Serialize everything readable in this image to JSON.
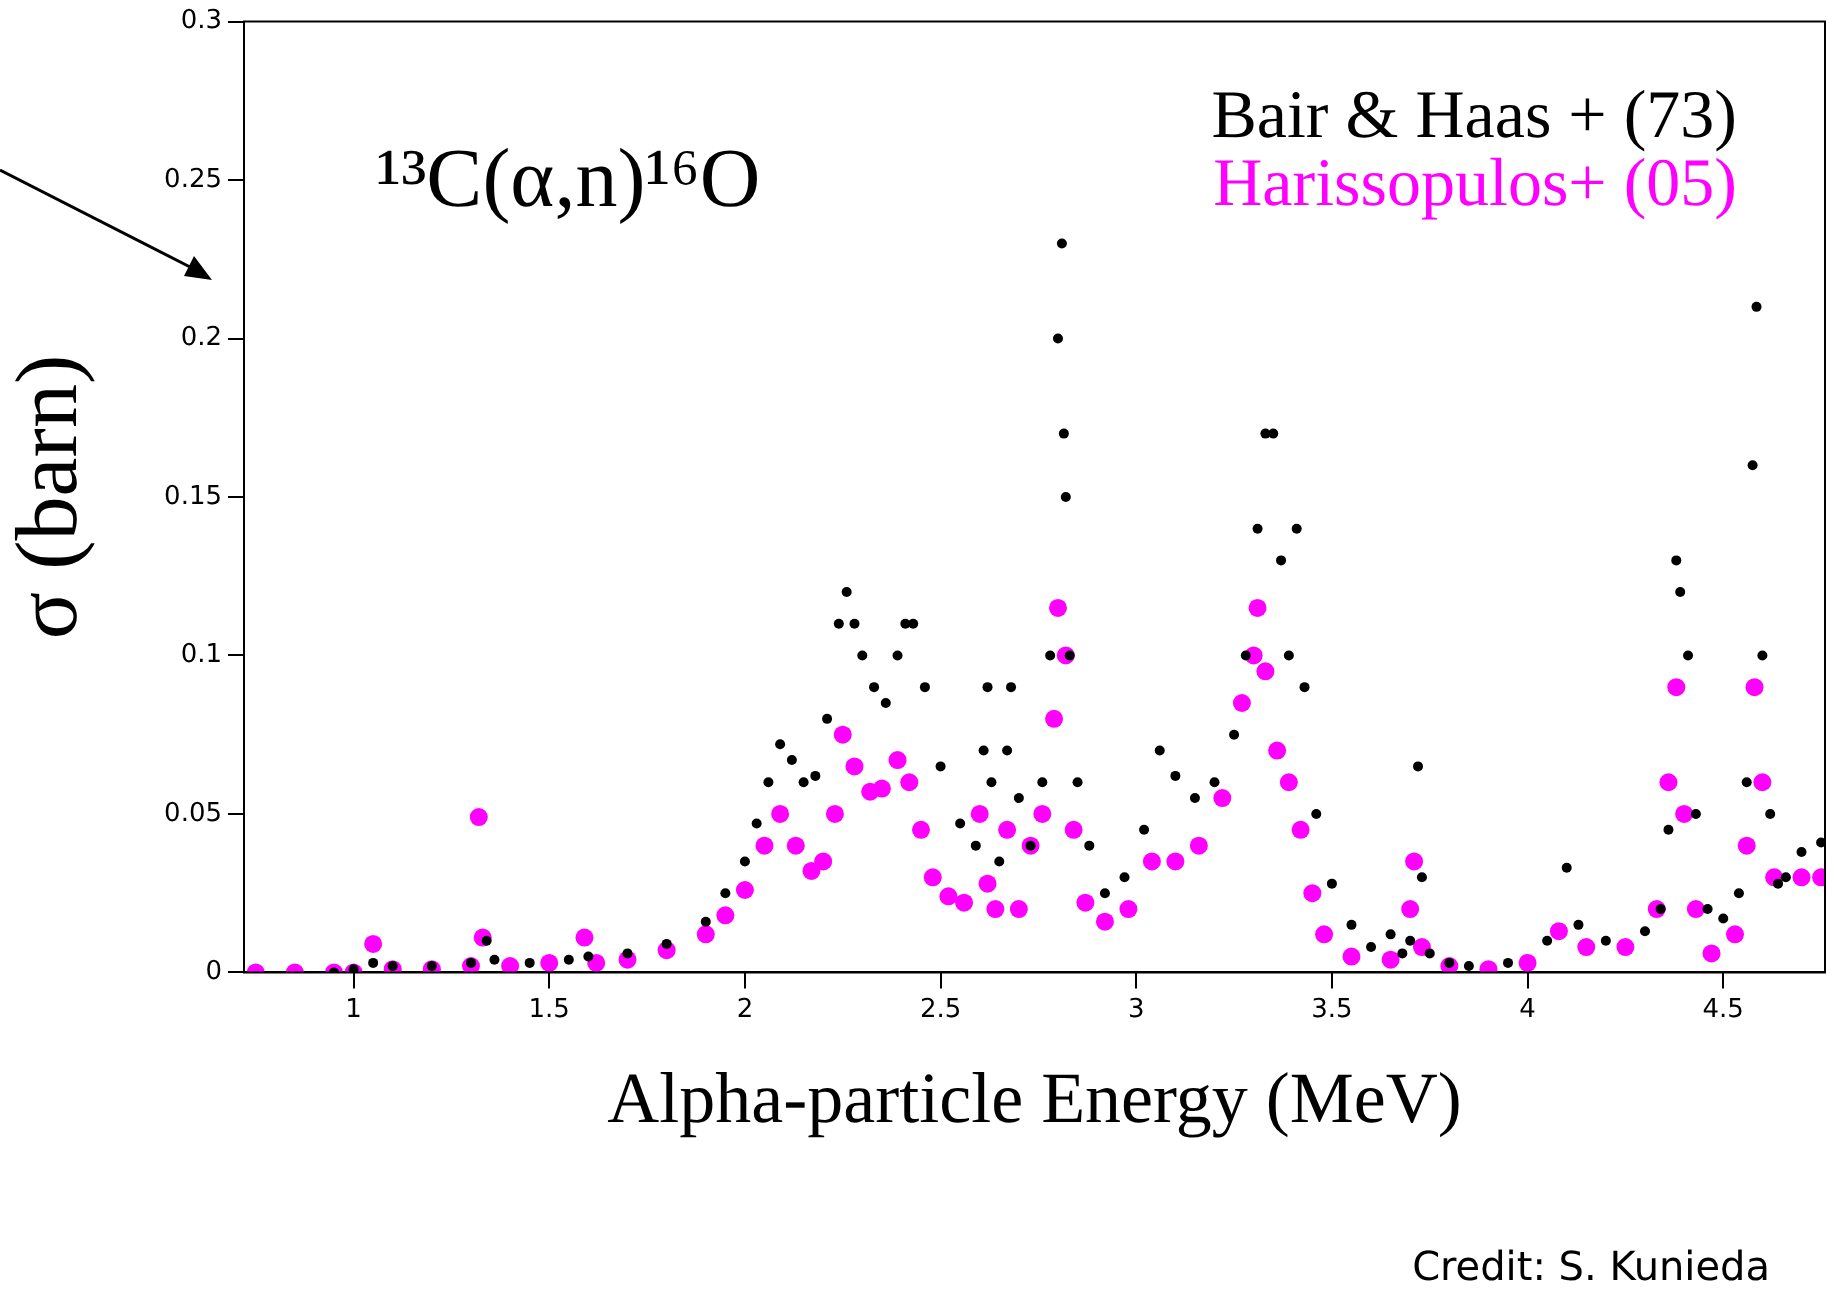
{
  "chart_data": {
    "type": "scatter",
    "xlabel": "Alpha-particle Energy (MeV)",
    "ylabel": "σ (barn)",
    "xlim": [
      0.72,
      4.76
    ],
    "xticks": [
      1,
      1.5,
      2,
      2.5,
      3,
      3.5,
      4,
      4.5
    ],
    "ylim": [
      0,
      0.3
    ],
    "yticks": [
      0,
      0.05,
      0.1,
      0.15,
      0.2,
      0.25,
      0.3
    ],
    "grid": false,
    "legend": "top right",
    "marker": "circle",
    "annotations": [
      "¹³C(α,n)¹⁶O",
      "Credit: S. Kunieda"
    ],
    "series": [
      {
        "name": "Bair & Haas + (73)",
        "color": "#000000",
        "x": [
          0.95,
          1.0,
          1.05,
          1.1,
          1.2,
          1.3,
          1.34,
          1.36,
          1.45,
          1.55,
          1.6,
          1.7,
          1.8,
          1.9,
          1.95,
          2.0,
          2.03,
          2.06,
          2.09,
          2.12,
          2.15,
          2.18,
          2.21,
          2.24,
          2.26,
          2.28,
          2.3,
          2.33,
          2.36,
          2.39,
          2.41,
          2.43,
          2.46,
          2.5,
          2.55,
          2.59,
          2.61,
          2.62,
          2.63,
          2.65,
          2.67,
          2.68,
          2.7,
          2.73,
          2.76,
          2.78,
          2.8,
          2.81,
          2.815,
          2.82,
          2.83,
          2.85,
          2.88,
          2.92,
          2.97,
          3.02,
          3.06,
          3.1,
          3.15,
          3.2,
          3.25,
          3.28,
          3.31,
          3.33,
          3.35,
          3.37,
          3.39,
          3.41,
          3.43,
          3.46,
          3.5,
          3.55,
          3.6,
          3.65,
          3.68,
          3.7,
          3.72,
          3.73,
          3.75,
          3.8,
          3.85,
          3.95,
          4.05,
          4.1,
          4.13,
          4.2,
          4.3,
          4.34,
          4.36,
          4.38,
          4.39,
          4.41,
          4.43,
          4.46,
          4.5,
          4.54,
          4.56,
          4.575,
          4.585,
          4.6,
          4.62,
          4.64,
          4.66,
          4.7,
          4.75
        ],
        "values": [
          0.0,
          0.001,
          0.003,
          0.002,
          0.002,
          0.003,
          0.01,
          0.004,
          0.003,
          0.004,
          0.005,
          0.006,
          0.009,
          0.016,
          0.025,
          0.035,
          0.047,
          0.06,
          0.072,
          0.067,
          0.06,
          0.062,
          0.08,
          0.11,
          0.12,
          0.11,
          0.1,
          0.09,
          0.085,
          0.1,
          0.11,
          0.11,
          0.09,
          0.065,
          0.047,
          0.04,
          0.07,
          0.09,
          0.06,
          0.035,
          0.07,
          0.09,
          0.055,
          0.04,
          0.06,
          0.1,
          0.2,
          0.23,
          0.17,
          0.15,
          0.1,
          0.06,
          0.04,
          0.025,
          0.03,
          0.045,
          0.07,
          0.062,
          0.055,
          0.06,
          0.075,
          0.1,
          0.14,
          0.17,
          0.17,
          0.13,
          0.1,
          0.14,
          0.09,
          0.05,
          0.028,
          0.015,
          0.008,
          0.012,
          0.006,
          0.01,
          0.065,
          0.03,
          0.006,
          0.003,
          0.002,
          0.003,
          0.01,
          0.033,
          0.015,
          0.01,
          0.013,
          0.02,
          0.045,
          0.13,
          0.12,
          0.1,
          0.05,
          0.02,
          0.017,
          0.025,
          0.06,
          0.16,
          0.21,
          0.1,
          0.05,
          0.028,
          0.03,
          0.038,
          0.041
        ]
      },
      {
        "name": "Harissopulos+ (05)",
        "color": "#ff00ff",
        "x": [
          0.75,
          0.85,
          0.95,
          1.0,
          1.05,
          1.1,
          1.2,
          1.3,
          1.32,
          1.33,
          1.4,
          1.5,
          1.59,
          1.62,
          1.7,
          1.8,
          1.9,
          1.95,
          2.0,
          2.05,
          2.09,
          2.13,
          2.17,
          2.2,
          2.23,
          2.25,
          2.28,
          2.32,
          2.35,
          2.39,
          2.42,
          2.45,
          2.48,
          2.52,
          2.56,
          2.6,
          2.62,
          2.64,
          2.67,
          2.7,
          2.73,
          2.76,
          2.79,
          2.8,
          2.82,
          2.84,
          2.87,
          2.92,
          2.98,
          3.04,
          3.1,
          3.16,
          3.22,
          3.27,
          3.3,
          3.31,
          3.33,
          3.36,
          3.39,
          3.42,
          3.45,
          3.48,
          3.55,
          3.65,
          3.7,
          3.71,
          3.73,
          3.8,
          3.9,
          4.0,
          4.08,
          4.15,
          4.25,
          4.33,
          4.36,
          4.38,
          4.4,
          4.43,
          4.47,
          4.53,
          4.56,
          4.58,
          4.6,
          4.63,
          4.7,
          4.75
        ],
        "values": [
          0.0,
          0.0,
          0.0,
          0.0,
          0.009,
          0.001,
          0.001,
          0.002,
          0.049,
          0.011,
          0.002,
          0.003,
          0.011,
          0.003,
          0.004,
          0.007,
          0.012,
          0.018,
          0.026,
          0.04,
          0.05,
          0.04,
          0.032,
          0.035,
          0.05,
          0.075,
          0.065,
          0.057,
          0.058,
          0.067,
          0.06,
          0.045,
          0.03,
          0.024,
          0.022,
          0.05,
          0.028,
          0.02,
          0.045,
          0.02,
          0.04,
          0.05,
          0.08,
          0.115,
          0.1,
          0.045,
          0.022,
          0.016,
          0.02,
          0.035,
          0.035,
          0.04,
          0.055,
          0.085,
          0.1,
          0.115,
          0.095,
          0.07,
          0.06,
          0.045,
          0.025,
          0.012,
          0.005,
          0.004,
          0.02,
          0.035,
          0.008,
          0.002,
          0.001,
          0.003,
          0.013,
          0.008,
          0.008,
          0.02,
          0.06,
          0.09,
          0.05,
          0.02,
          0.006,
          0.012,
          0.04,
          0.09,
          0.06,
          0.03,
          0.03,
          0.03
        ]
      }
    ]
  }
}
